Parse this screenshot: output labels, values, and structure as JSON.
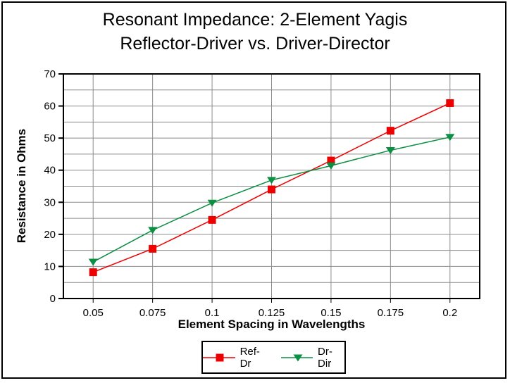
{
  "window": {
    "background_color": "#FFFFFF",
    "border_color": "#000000"
  },
  "chart_data": {
    "type": "line",
    "title_lines": [
      "Resonant Impedance: 2-Element Yagis",
      "Reflector-Driver vs. Driver-Director"
    ],
    "xlabel": "Element Spacing in Wavelengths",
    "ylabel": "Resistance in Ohms",
    "x_categories": [
      "0.05",
      "0.075",
      "0.1",
      "0.125",
      "0.15",
      "0.175",
      "0.2"
    ],
    "y_tick_labels": [
      "0",
      "10",
      "20",
      "30",
      "40",
      "50",
      "60",
      "70"
    ],
    "ylim": [
      0,
      70
    ],
    "y_major_step": 10,
    "y_minor_step": 5,
    "grid": true,
    "legend_position": "bottom",
    "series": [
      {
        "name": "Ref-Dr",
        "marker": "square",
        "color": "#EE0000",
        "values": [
          8.2,
          15.5,
          24.5,
          34.0,
          43.0,
          52.3,
          60.9
        ]
      },
      {
        "name": "Dr-Dir",
        "marker": "triangle-down",
        "color": "#0B8F43",
        "values": [
          11.4,
          21.3,
          29.8,
          36.9,
          41.4,
          46.2,
          50.3
        ]
      }
    ],
    "colors": {
      "gridline": "#8C8C8C",
      "axis": "#000000",
      "text": "#000000",
      "background": "#FFFFFF"
    }
  }
}
